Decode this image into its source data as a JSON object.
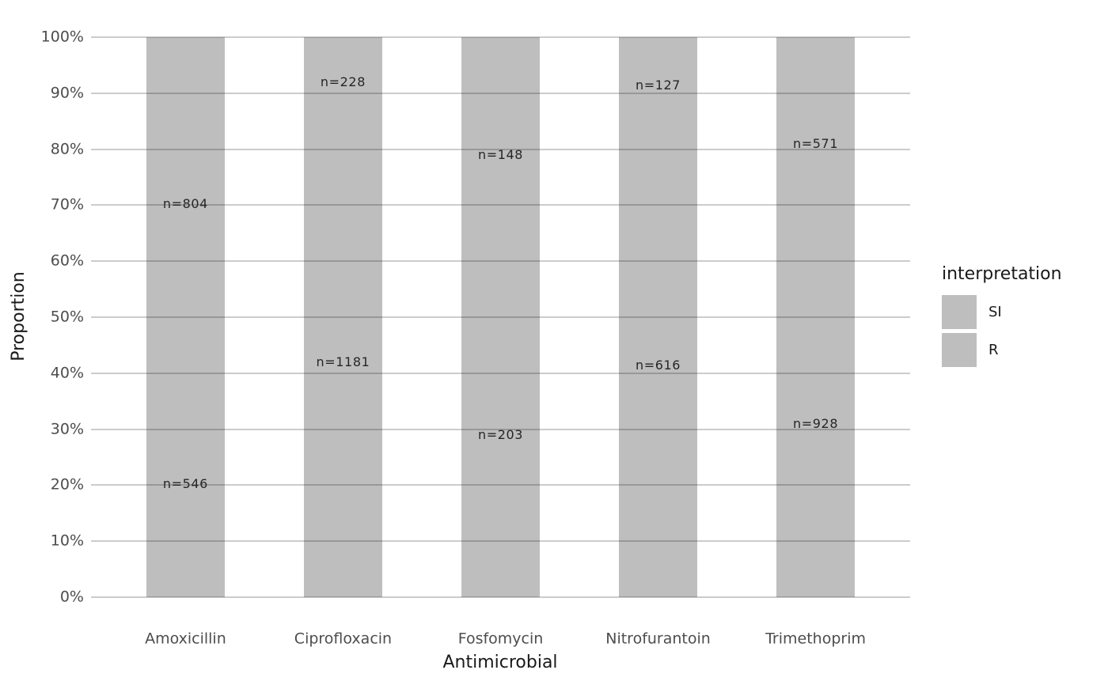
{
  "chart_data": {
    "type": "bar",
    "variant": "100-percent-stacked-column",
    "title": "",
    "xlabel": "Antimicrobial",
    "ylabel": "Proportion",
    "categories": [
      "Amoxicillin",
      "Ciprofloxacin",
      "Fosfomycin",
      "Nitrofurantoin",
      "Trimethoprim"
    ],
    "series": [
      {
        "name": "SI",
        "stack_position": "bottom",
        "values": [
          546,
          1181,
          203,
          616,
          928
        ]
      },
      {
        "name": "R",
        "stack_position": "top",
        "values": [
          804,
          228,
          148,
          127,
          571
        ]
      }
    ],
    "bar_label_prefix": "n=",
    "bar_labels": {
      "top": [
        "n=804",
        "n=228",
        "n=148",
        "n=127",
        "n=571"
      ],
      "bottom": [
        "n=546",
        "n=1181",
        "n=203",
        "n=616",
        "n=928"
      ]
    },
    "y_axis": {
      "tick_labels": [
        "0%",
        "10%",
        "20%",
        "30%",
        "40%",
        "50%",
        "60%",
        "70%",
        "80%",
        "90%",
        "100%"
      ],
      "tick_values": [
        0,
        10,
        20,
        30,
        40,
        50,
        60,
        70,
        80,
        90,
        100
      ],
      "range": [
        0,
        100
      ],
      "grid": true,
      "grid_on_top_of_bars": true
    },
    "legend": {
      "title": "interpretation",
      "position": "right",
      "items": [
        {
          "label": "SI",
          "color": "#bebebe"
        },
        {
          "label": "R",
          "color": "#bebebe"
        }
      ]
    },
    "colors": {
      "bar_fill": "#bebebe",
      "gridline": "rgba(0,0,0,0.2)",
      "background": "#ffffff",
      "tick_text": "#4d4d4d",
      "title_text": "#1a1a1a",
      "bar_label_text": "#262626"
    }
  }
}
